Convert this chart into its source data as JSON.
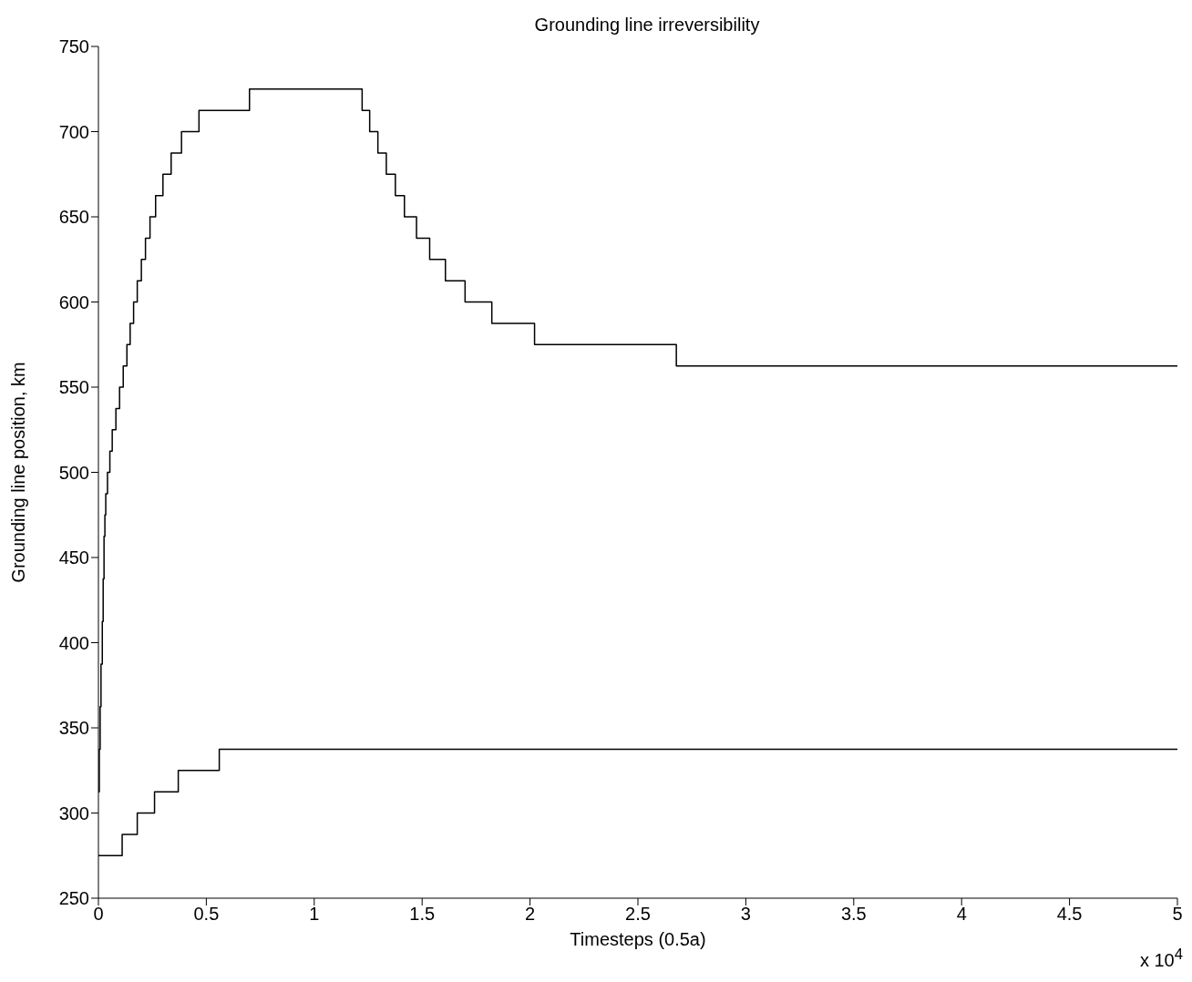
{
  "chart_data": {
    "type": "step",
    "title": "Grounding line irreversibility",
    "xlabel": "Timesteps (0.5a)",
    "ylabel": "Grounding line position, km",
    "annotations": [
      "x 10$^{4}$"
    ],
    "xlim": [
      0,
      5
    ],
    "xticks": [
      0,
      0.5,
      1,
      1.5,
      2,
      2.5,
      3,
      3.5,
      4,
      4.5,
      5
    ],
    "ylim": [
      250,
      750
    ],
    "yticks": [
      250,
      300,
      350,
      400,
      450,
      500,
      550,
      600,
      650,
      700,
      750
    ],
    "grid": false,
    "marker": "none",
    "line_style": "solid",
    "series": [
      {
        "color": "#000000",
        "x": [
          0,
          0.004,
          0.008,
          0.012,
          0.018,
          0.022,
          0.026,
          0.03,
          0.034,
          0.042,
          0.053,
          0.064,
          0.081,
          0.098,
          0.115,
          0.132,
          0.147,
          0.163,
          0.18,
          0.199,
          0.218,
          0.239,
          0.265,
          0.299,
          0.337,
          0.385,
          0.466,
          0.7,
          1.222,
          1.257,
          1.295,
          1.334,
          1.376,
          1.418,
          1.474,
          1.535,
          1.608,
          1.699,
          1.823,
          2.021,
          2.678,
          5
        ],
        "values": [
          312.5,
          337.5,
          362.5,
          387.5,
          412.5,
          437.5,
          462.5,
          475,
          487.5,
          500,
          512.5,
          525,
          537.5,
          550,
          562.5,
          575,
          587.5,
          600,
          612.5,
          625,
          637.5,
          650,
          662.5,
          675,
          687.5,
          700,
          712.5,
          725,
          712.5,
          700,
          687.5,
          675,
          662.5,
          650,
          637.5,
          625,
          612.5,
          600,
          587.5,
          575,
          562.5,
          562.5
        ]
      },
      {
        "color": "#000000",
        "x": [
          0,
          0.11,
          0.18,
          0.26,
          0.37,
          0.56,
          5
        ],
        "values": [
          275,
          287.5,
          300,
          312.5,
          325,
          337.5,
          337.5
        ]
      }
    ]
  }
}
